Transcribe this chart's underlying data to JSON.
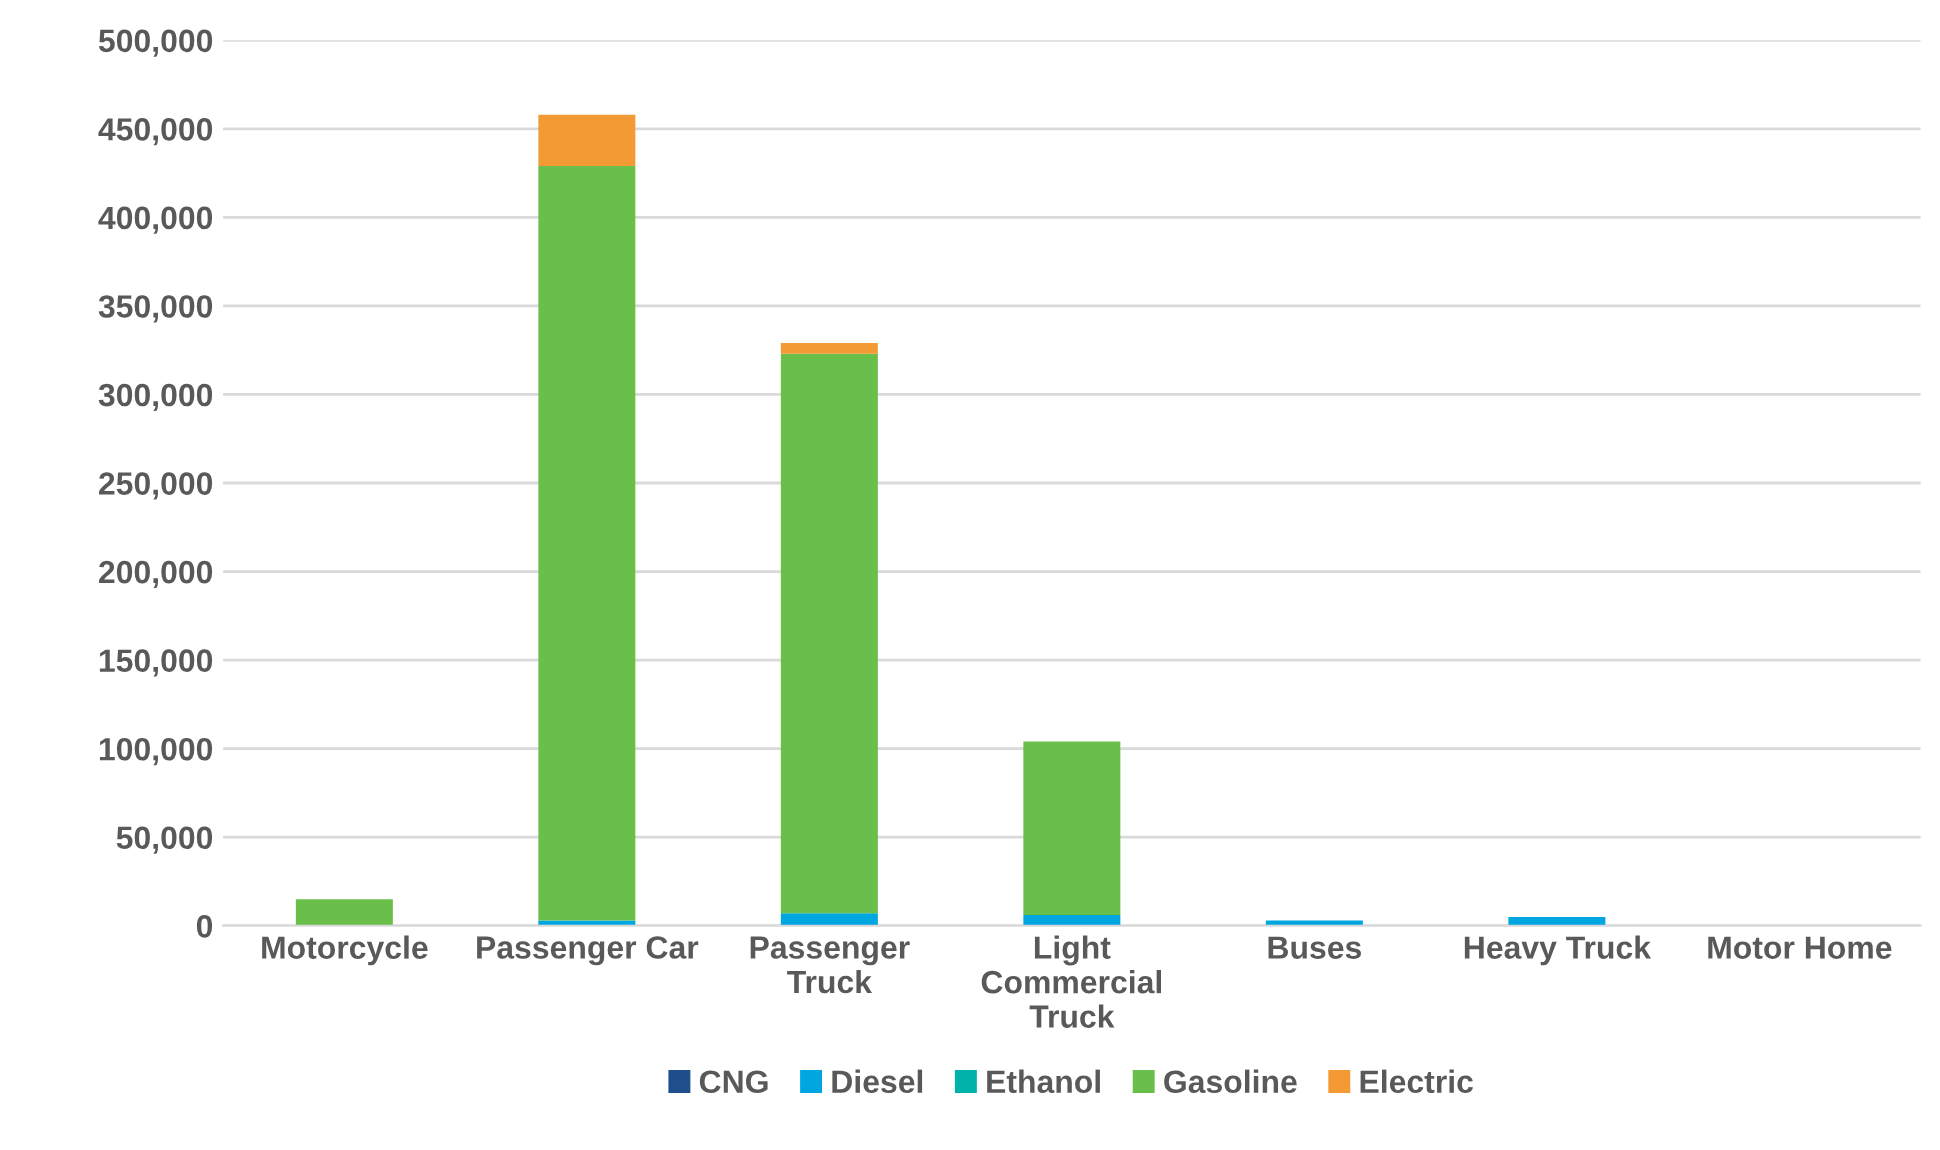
{
  "chart_data": {
    "type": "bar",
    "stacked": true,
    "categories": [
      "Motorcycle",
      "Passenger Car",
      "Passenger\nTruck",
      "Light\nCommercial\nTruck",
      "Buses",
      "Heavy Truck",
      "Motor Home"
    ],
    "series": [
      {
        "name": "CNG",
        "color": "#1f4e8c",
        "values": [
          0,
          0,
          0,
          0,
          0,
          0,
          0
        ]
      },
      {
        "name": "Diesel",
        "color": "#00a6e0",
        "values": [
          0,
          3000,
          7000,
          6000,
          3000,
          5000,
          0
        ]
      },
      {
        "name": "Ethanol",
        "color": "#00b2a9",
        "values": [
          0,
          0,
          0,
          0,
          0,
          0,
          0
        ]
      },
      {
        "name": "Gasoline",
        "color": "#6abf4b",
        "values": [
          15000,
          426000,
          316000,
          98000,
          0,
          0,
          0
        ]
      },
      {
        "name": "Electric",
        "color": "#f39a35",
        "values": [
          0,
          29000,
          6000,
          0,
          0,
          0,
          0
        ]
      }
    ],
    "ylim": [
      0,
      500000
    ],
    "yticks": [
      {
        "value": 0,
        "label": "0"
      },
      {
        "value": 50000,
        "label": "50,000"
      },
      {
        "value": 100000,
        "label": "100,000"
      },
      {
        "value": 150000,
        "label": "150,000"
      },
      {
        "value": 200000,
        "label": "200,000"
      },
      {
        "value": 250000,
        "label": "250,000"
      },
      {
        "value": 300000,
        "label": "300,000"
      },
      {
        "value": 350000,
        "label": "350,000"
      },
      {
        "value": 400000,
        "label": "400,000"
      },
      {
        "value": 450000,
        "label": "450,000"
      },
      {
        "value": 500000,
        "label": "500,000"
      }
    ],
    "grid": "y",
    "legend": "bottom"
  }
}
